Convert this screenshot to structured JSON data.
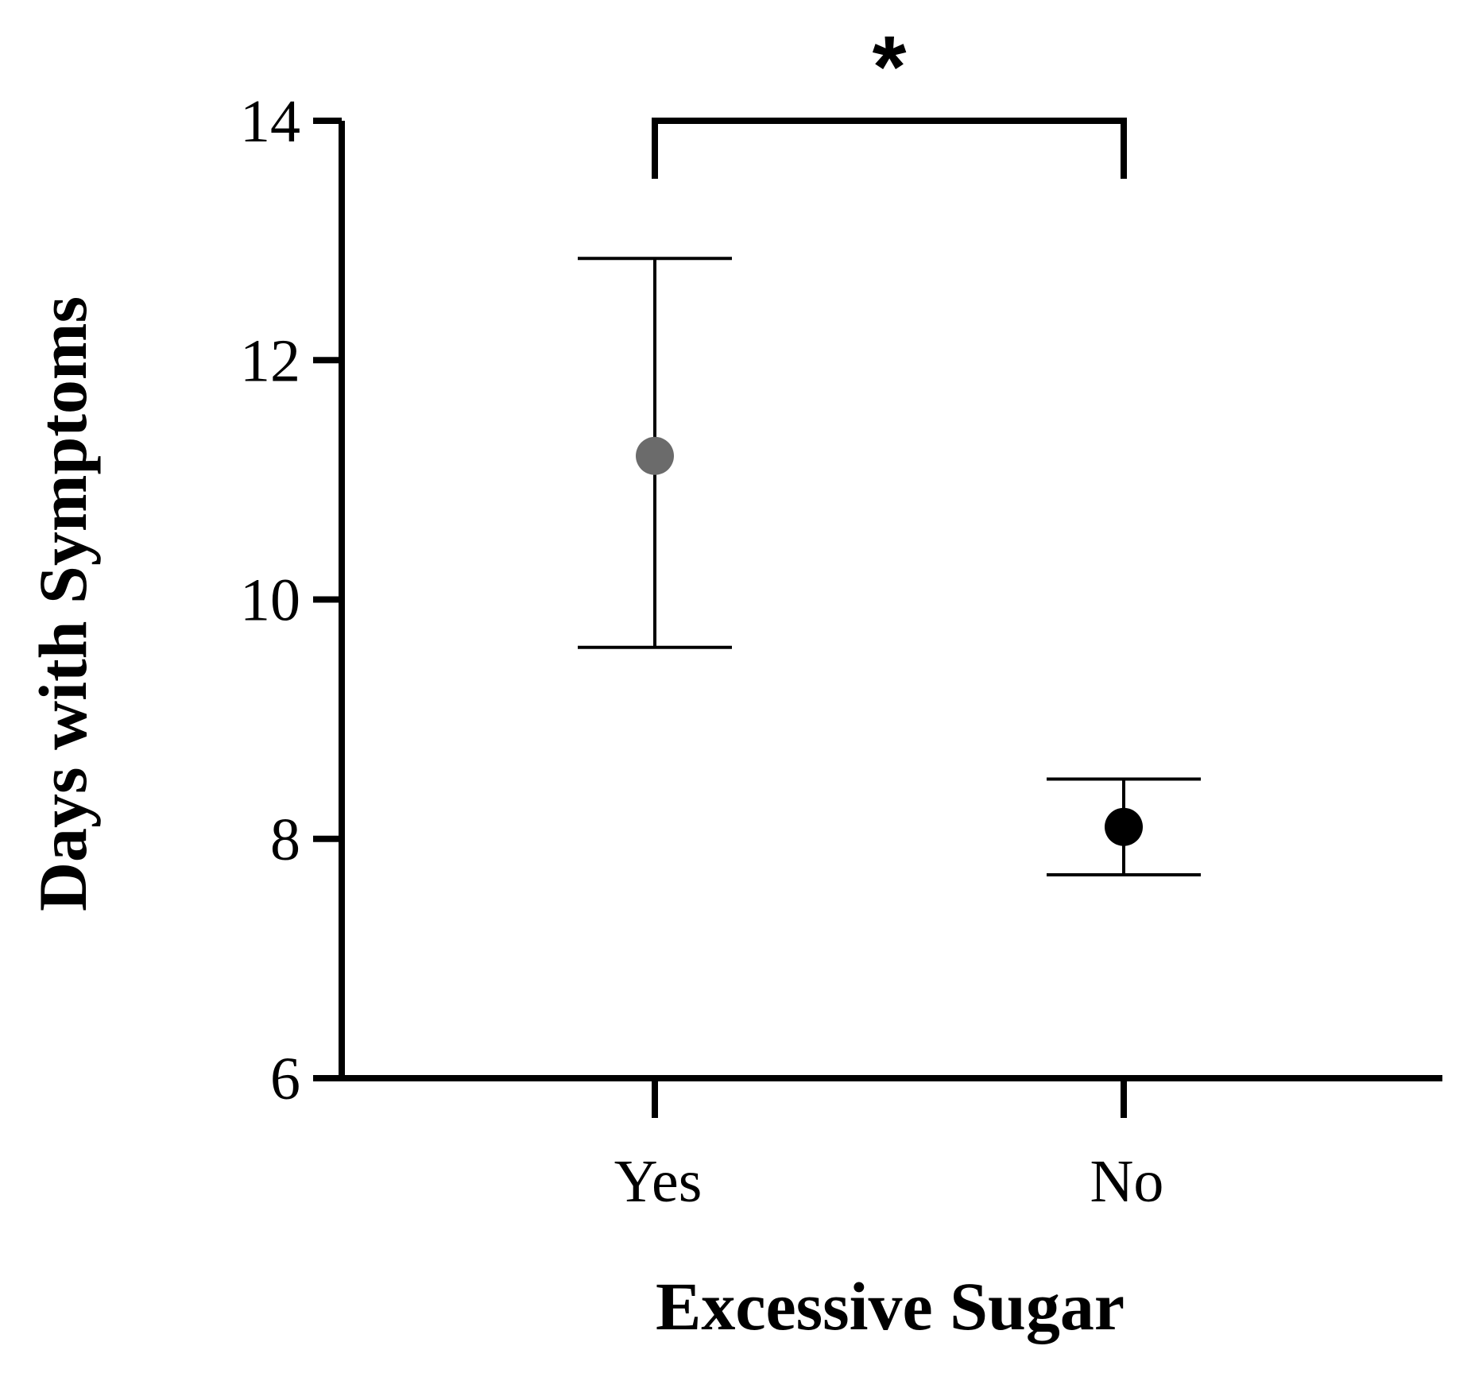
{
  "chart_data": {
    "type": "scatter",
    "title": "",
    "xlabel": "Excessive Sugar",
    "ylabel": "Days with Symptoms",
    "ylim": [
      6,
      14
    ],
    "yticks": [
      "6",
      "8",
      "10",
      "12",
      "14"
    ],
    "grid": false,
    "categories": [
      "Yes",
      "No"
    ],
    "points": [
      {
        "category": "Yes",
        "mean": 11.2,
        "lower": 9.6,
        "upper": 12.85,
        "color": "#6b6b6b"
      },
      {
        "category": "No",
        "mean": 8.1,
        "lower": 7.7,
        "upper": 8.5,
        "color": "#000000"
      }
    ],
    "significance": {
      "from": "Yes",
      "to": "No",
      "label": "*"
    }
  }
}
